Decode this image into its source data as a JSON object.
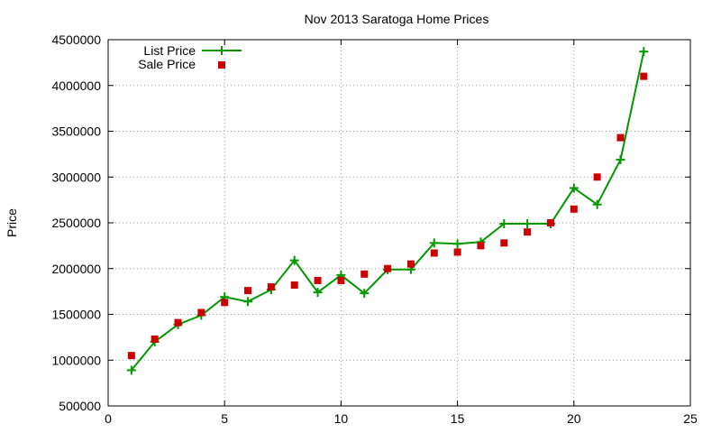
{
  "chart_data": {
    "type": "line",
    "title": "Nov 2013 Saratoga Home Prices",
    "xlabel": "",
    "ylabel": "Price",
    "xlim": [
      0,
      25
    ],
    "ylim": [
      500000,
      4500000
    ],
    "xticks": [
      0,
      5,
      10,
      15,
      20,
      25
    ],
    "yticks": [
      500000,
      1000000,
      1500000,
      2000000,
      2500000,
      3000000,
      3500000,
      4000000,
      4500000
    ],
    "grid": true,
    "legend": "top-left",
    "series": [
      {
        "name": "List Price",
        "style": "line-with-plus-markers",
        "color": "#009900",
        "x": [
          1,
          2,
          3,
          4,
          5,
          6,
          7,
          8,
          9,
          10,
          11,
          12,
          13,
          14,
          15,
          16,
          17,
          18,
          19,
          20,
          21,
          22,
          23
        ],
        "y": [
          890000,
          1200000,
          1390000,
          1490000,
          1690000,
          1640000,
          1770000,
          2090000,
          1740000,
          1930000,
          1730000,
          1990000,
          1990000,
          2280000,
          2270000,
          2290000,
          2490000,
          2490000,
          2490000,
          2880000,
          2700000,
          3190000,
          4370000
        ]
      },
      {
        "name": "Sale Price",
        "style": "square-markers",
        "color": "#cc0000",
        "x": [
          1,
          2,
          3,
          4,
          5,
          6,
          7,
          8,
          9,
          10,
          11,
          12,
          13,
          14,
          15,
          16,
          17,
          18,
          19,
          20,
          21,
          22,
          23
        ],
        "y": [
          1050000,
          1230000,
          1410000,
          1520000,
          1630000,
          1760000,
          1800000,
          1820000,
          1870000,
          1870000,
          1940000,
          2000000,
          2050000,
          2170000,
          2180000,
          2250000,
          2280000,
          2400000,
          2500000,
          2650000,
          3000000,
          3430000,
          4100000
        ]
      }
    ]
  }
}
